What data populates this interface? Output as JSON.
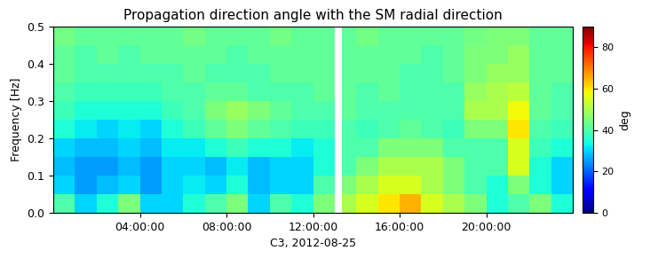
{
  "chart_data": {
    "type": "heatmap",
    "title": "Propagation direction angle with the SM radial direction",
    "x_label": "C3, 2012-08-25",
    "y_label": "Frequency [Hz]",
    "xlim": [
      0,
      24
    ],
    "xticks": [
      {
        "value": 4,
        "label": "04:00:00"
      },
      {
        "value": 8,
        "label": "08:00:00"
      },
      {
        "value": 12,
        "label": "12:00:00"
      },
      {
        "value": 16,
        "label": "16:00:00"
      },
      {
        "value": 20,
        "label": "20:00:00"
      }
    ],
    "ylim": [
      0.0,
      0.5
    ],
    "yticks": [
      0.0,
      0.1,
      0.2,
      0.3,
      0.4,
      0.5
    ],
    "x_edges": [
      0,
      1,
      2,
      3,
      4,
      5,
      6,
      7,
      8,
      9,
      10,
      11,
      12,
      13,
      13.35,
      14,
      15,
      16,
      17,
      18,
      19,
      20,
      21,
      22,
      23,
      24
    ],
    "y_edges": [
      0.0,
      0.05,
      0.1,
      0.15,
      0.2,
      0.25,
      0.3,
      0.35,
      0.4,
      0.45,
      0.5
    ],
    "cells": [
      [
        40,
        30,
        35,
        45,
        30,
        30,
        35,
        40,
        45,
        30,
        40,
        35,
        45,
        null,
        50,
        55,
        60,
        65,
        55,
        50,
        45,
        35,
        40,
        45,
        35
      ],
      [
        30,
        25,
        28,
        30,
        25,
        30,
        32,
        30,
        35,
        28,
        30,
        30,
        40,
        null,
        45,
        50,
        55,
        55,
        50,
        45,
        40,
        35,
        45,
        35,
        30
      ],
      [
        28,
        25,
        25,
        28,
        25,
        30,
        30,
        28,
        32,
        28,
        30,
        30,
        35,
        null,
        40,
        45,
        50,
        50,
        50,
        45,
        40,
        40,
        55,
        35,
        30
      ],
      [
        30,
        28,
        28,
        30,
        28,
        32,
        32,
        35,
        38,
        35,
        35,
        32,
        35,
        null,
        40,
        40,
        45,
        45,
        45,
        40,
        40,
        40,
        55,
        38,
        35
      ],
      [
        35,
        32,
        30,
        32,
        30,
        35,
        38,
        42,
        45,
        42,
        40,
        38,
        38,
        null,
        40,
        38,
        40,
        42,
        40,
        38,
        45,
        45,
        60,
        40,
        38
      ],
      [
        38,
        35,
        35,
        35,
        35,
        38,
        40,
        45,
        48,
        45,
        42,
        40,
        40,
        null,
        42,
        40,
        40,
        40,
        40,
        40,
        50,
        50,
        58,
        42,
        40
      ],
      [
        40,
        38,
        38,
        38,
        38,
        40,
        40,
        42,
        42,
        40,
        40,
        40,
        42,
        null,
        42,
        40,
        42,
        40,
        40,
        40,
        48,
        50,
        52,
        42,
        40
      ],
      [
        42,
        40,
        40,
        40,
        40,
        40,
        42,
        40,
        40,
        40,
        42,
        42,
        42,
        null,
        42,
        42,
        42,
        40,
        40,
        42,
        45,
        48,
        48,
        42,
        42
      ],
      [
        42,
        40,
        42,
        40,
        42,
        42,
        42,
        42,
        40,
        42,
        42,
        42,
        42,
        null,
        42,
        42,
        42,
        42,
        40,
        42,
        45,
        45,
        48,
        42,
        42
      ],
      [
        44,
        42,
        42,
        42,
        42,
        42,
        44,
        42,
        42,
        42,
        44,
        42,
        42,
        null,
        42,
        44,
        42,
        42,
        42,
        42,
        44,
        45,
        45,
        42,
        42
      ]
    ],
    "colorbar": {
      "range": [
        0,
        90
      ],
      "ticks": [
        0,
        20,
        40,
        60,
        80
      ],
      "label": "deg"
    }
  }
}
